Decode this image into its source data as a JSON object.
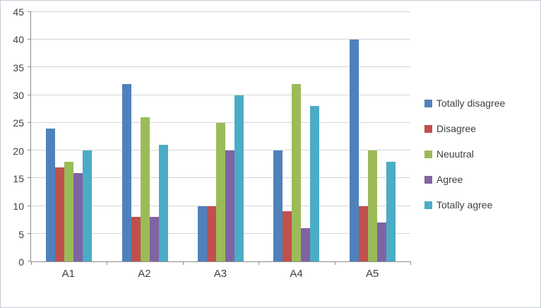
{
  "chart_data": {
    "type": "bar",
    "title": "",
    "xlabel": "",
    "ylabel": "",
    "categories": [
      "A1",
      "A2",
      "A3",
      "A4",
      "A5"
    ],
    "series": [
      {
        "name": "Totally disagree",
        "color": "#4F81BD",
        "values": [
          24,
          32,
          10,
          20,
          40
        ]
      },
      {
        "name": "Disagree",
        "color": "#C0504D",
        "values": [
          17,
          8,
          10,
          9,
          10
        ]
      },
      {
        "name": "Neuutral",
        "color": "#9BBB59",
        "values": [
          18,
          26,
          25,
          32,
          20
        ]
      },
      {
        "name": "Agree",
        "color": "#8064A2",
        "values": [
          16,
          8,
          20,
          6,
          7
        ]
      },
      {
        "name": "Totally agree",
        "color": "#4BACC6",
        "values": [
          20,
          21,
          30,
          28,
          18
        ]
      }
    ],
    "ylim": [
      0,
      45
    ],
    "ytick_step": 5,
    "grid": true,
    "legend_position": "right"
  }
}
